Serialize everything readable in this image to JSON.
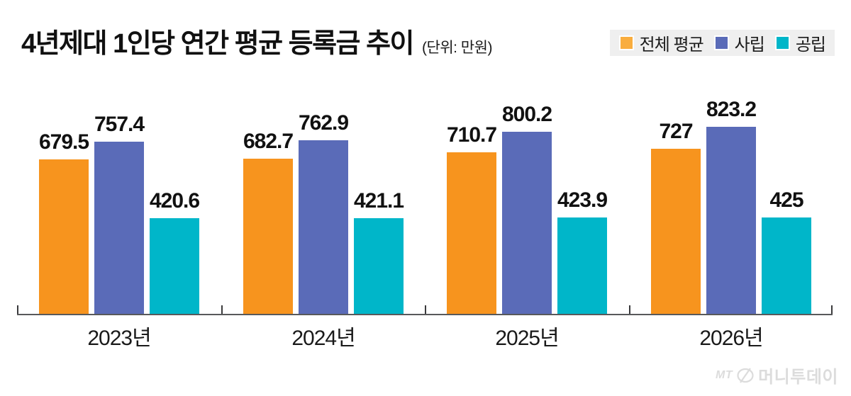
{
  "header": {
    "title": "4년제대 1인당 연간 평균 등록금 추이",
    "unit": "(단위: 만원)"
  },
  "legend": {
    "background": "#efefef",
    "position": "top-right",
    "items": [
      {
        "key": "overall-avg",
        "label": "전체 평균",
        "swatch_color": "#f9ad3e"
      },
      {
        "key": "private",
        "label": "사립",
        "swatch_color": "#5a6bb8"
      },
      {
        "key": "public",
        "label": "공립",
        "swatch_color": "#00b6c9"
      }
    ]
  },
  "chart_data": {
    "type": "bar",
    "title": "4년제대 1인당 연간 평균 등록금 추이",
    "unit": "만원",
    "categories": [
      "2023년",
      "2024년",
      "2025년",
      "2026년"
    ],
    "series": [
      {
        "key": "overall-avg",
        "name": "전체 평균",
        "color": "#f7941e",
        "values": [
          679.5,
          682.7,
          710.7,
          727
        ]
      },
      {
        "key": "private",
        "name": "사립",
        "color": "#5a6bb8",
        "values": [
          757.4,
          762.9,
          800.2,
          823.2
        ]
      },
      {
        "key": "public",
        "name": "공립",
        "color": "#00b6c9",
        "values": [
          420.6,
          421.1,
          423.9,
          425
        ]
      }
    ],
    "value_labels": [
      [
        "679.5",
        "682.7",
        "710.7",
        "727"
      ],
      [
        "757.4",
        "762.9",
        "800.2",
        "823.2"
      ],
      [
        "420.6",
        "421.1",
        "423.9",
        "425"
      ]
    ],
    "ylim": [
      0,
      1030
    ],
    "grid": false,
    "axis_color": "#58595b",
    "legend_position": "top-right"
  },
  "footer": {
    "logo_mt": "MT",
    "logo_text": "머니투데이"
  }
}
